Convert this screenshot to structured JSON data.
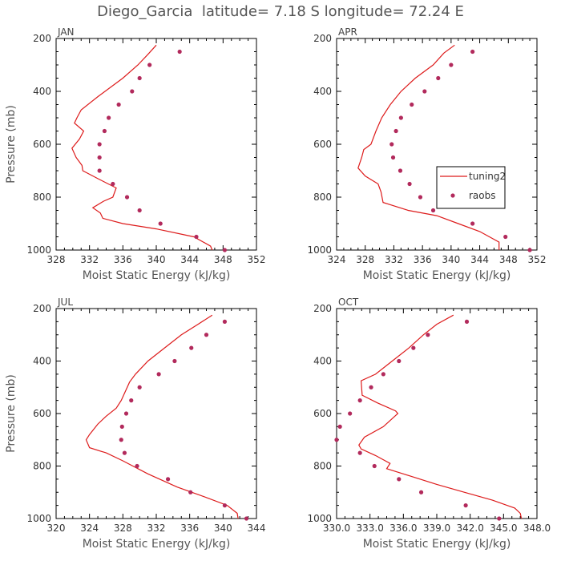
{
  "figure": {
    "title": "Diego_Garcia  latitude= 7.18 S longitude= 72.24 E"
  },
  "colors": {
    "series": "#dd1b1b",
    "points": "#b22a5c",
    "axes": "#000000",
    "text": "#555555"
  },
  "chart_data": [
    {
      "type": "line",
      "panel_title": "JAN",
      "xlabel": "Moist Static Energy (kJ/kg)",
      "ylabel": "Pressure (mb)",
      "xlim": [
        328,
        352
      ],
      "ylim": [
        200,
        1000
      ],
      "y_inverted": true,
      "xticks": [
        328,
        332,
        336,
        340,
        344,
        348,
        352
      ],
      "xtick_labels": [
        "328",
        "332",
        "336",
        "340",
        "344",
        "348",
        "352"
      ],
      "yticks": [
        200,
        400,
        600,
        800,
        1000
      ],
      "ytick_labels": [
        "200",
        "400",
        "600",
        "800",
        "1000"
      ],
      "legend": false,
      "series": [
        {
          "name": "tuning2",
          "kind": "line",
          "points": [
            [
              340.0,
              225
            ],
            [
              339.0,
              260
            ],
            [
              337.8,
              300
            ],
            [
              336.0,
              350
            ],
            [
              333.0,
              420
            ],
            [
              331.0,
              470
            ],
            [
              330.5,
              500
            ],
            [
              330.2,
              520
            ],
            [
              331.3,
              550
            ],
            [
              330.8,
              580
            ],
            [
              329.9,
              615
            ],
            [
              330.4,
              650
            ],
            [
              331.1,
              680
            ],
            [
              331.2,
              700
            ],
            [
              333.0,
              730
            ],
            [
              335.2,
              765
            ],
            [
              334.8,
              800
            ],
            [
              333.7,
              815
            ],
            [
              332.4,
              840
            ],
            [
              333.3,
              860
            ],
            [
              333.6,
              880
            ],
            [
              336.0,
              900
            ],
            [
              340.0,
              920
            ],
            [
              344.5,
              950
            ],
            [
              346.5,
              985
            ],
            [
              346.7,
              1000
            ]
          ]
        },
        {
          "name": "raobs",
          "kind": "points",
          "points": [
            [
              342.8,
              250
            ],
            [
              339.2,
              300
            ],
            [
              338.0,
              350
            ],
            [
              337.1,
              400
            ],
            [
              335.5,
              450
            ],
            [
              334.3,
              500
            ],
            [
              333.8,
              550
            ],
            [
              333.2,
              600
            ],
            [
              333.2,
              650
            ],
            [
              333.2,
              700
            ],
            [
              334.8,
              750
            ],
            [
              336.5,
              800
            ],
            [
              338.0,
              850
            ],
            [
              340.5,
              900
            ],
            [
              344.8,
              950
            ],
            [
              348.2,
              1000
            ]
          ]
        }
      ]
    },
    {
      "type": "line",
      "panel_title": "APR",
      "xlabel": "Moist Static Energy (kJ/kg)",
      "ylabel": "",
      "xlim": [
        324,
        352
      ],
      "ylim": [
        200,
        1000
      ],
      "y_inverted": true,
      "xticks": [
        324,
        328,
        332,
        336,
        340,
        344,
        348,
        352
      ],
      "xtick_labels": [
        "324",
        "328",
        "332",
        "336",
        "340",
        "344",
        "348",
        "352"
      ],
      "yticks": [
        200,
        400,
        600,
        800,
        1000
      ],
      "ytick_labels": [
        "200",
        "400",
        "600",
        "800",
        "1000"
      ],
      "legend": true,
      "legend_entries": [
        "tuning2",
        "raobs"
      ],
      "series": [
        {
          "name": "tuning2",
          "kind": "line",
          "points": [
            [
              340.5,
              225
            ],
            [
              339.0,
              255
            ],
            [
              337.5,
              300
            ],
            [
              335.0,
              350
            ],
            [
              333.0,
              400
            ],
            [
              331.5,
              450
            ],
            [
              330.3,
              500
            ],
            [
              329.5,
              550
            ],
            [
              328.8,
              600
            ],
            [
              327.8,
              620
            ],
            [
              327.5,
              650
            ],
            [
              327.0,
              690
            ],
            [
              328.0,
              720
            ],
            [
              329.8,
              750
            ],
            [
              330.2,
              780
            ],
            [
              330.5,
              820
            ],
            [
              334.0,
              850
            ],
            [
              338.0,
              870
            ],
            [
              341.0,
              900
            ],
            [
              344.0,
              930
            ],
            [
              346.7,
              970
            ],
            [
              346.7,
              1000
            ]
          ]
        },
        {
          "name": "raobs",
          "kind": "points",
          "points": [
            [
              343.0,
              250
            ],
            [
              340.0,
              300
            ],
            [
              338.2,
              350
            ],
            [
              336.3,
              400
            ],
            [
              334.5,
              450
            ],
            [
              333.0,
              500
            ],
            [
              332.3,
              550
            ],
            [
              331.7,
              600
            ],
            [
              331.9,
              650
            ],
            [
              332.9,
              700
            ],
            [
              334.2,
              750
            ],
            [
              335.7,
              800
            ],
            [
              337.5,
              850
            ],
            [
              343.0,
              900
            ],
            [
              347.6,
              950
            ],
            [
              351.0,
              1000
            ]
          ]
        }
      ]
    },
    {
      "type": "line",
      "panel_title": "JUL",
      "xlabel": "Moist Static Energy (kJ/kg)",
      "ylabel": "Pressure (mb)",
      "xlim": [
        320,
        344
      ],
      "ylim": [
        200,
        1000
      ],
      "y_inverted": true,
      "xticks": [
        320,
        324,
        328,
        332,
        336,
        340,
        344
      ],
      "xtick_labels": [
        "320",
        "324",
        "328",
        "332",
        "336",
        "340",
        "344"
      ],
      "yticks": [
        200,
        400,
        600,
        800,
        1000
      ],
      "ytick_labels": [
        "200",
        "400",
        "600",
        "800",
        "1000"
      ],
      "legend": false,
      "series": [
        {
          "name": "tuning2",
          "kind": "line",
          "points": [
            [
              338.7,
              225
            ],
            [
              337.0,
              260
            ],
            [
              335.0,
              300
            ],
            [
              333.0,
              350
            ],
            [
              331.0,
              400
            ],
            [
              329.5,
              450
            ],
            [
              328.8,
              480
            ],
            [
              327.8,
              550
            ],
            [
              327.2,
              580
            ],
            [
              326.0,
              610
            ],
            [
              325.0,
              640
            ],
            [
              324.0,
              680
            ],
            [
              323.6,
              700
            ],
            [
              324.0,
              730
            ],
            [
              326.0,
              750
            ],
            [
              328.0,
              780
            ],
            [
              331.0,
              830
            ],
            [
              334.5,
              880
            ],
            [
              338.0,
              920
            ],
            [
              340.5,
              950
            ],
            [
              341.7,
              980
            ],
            [
              341.8,
              1000
            ]
          ]
        },
        {
          "name": "raobs",
          "kind": "points",
          "points": [
            [
              340.2,
              250
            ],
            [
              338.0,
              300
            ],
            [
              336.2,
              350
            ],
            [
              334.2,
              400
            ],
            [
              332.3,
              450
            ],
            [
              330.0,
              500
            ],
            [
              329.0,
              550
            ],
            [
              328.4,
              600
            ],
            [
              327.9,
              650
            ],
            [
              327.8,
              700
            ],
            [
              328.2,
              750
            ],
            [
              329.7,
              800
            ],
            [
              333.4,
              850
            ],
            [
              336.1,
              900
            ],
            [
              340.2,
              950
            ],
            [
              342.8,
              1000
            ]
          ]
        }
      ]
    },
    {
      "type": "line",
      "panel_title": "OCT",
      "xlabel": "Moist Static Energy (kJ/kg)",
      "ylabel": "",
      "xlim": [
        330.0,
        348.0
      ],
      "ylim": [
        200,
        1000
      ],
      "y_inverted": true,
      "xticks": [
        330.0,
        333.0,
        336.0,
        339.0,
        342.0,
        345.0,
        348.0
      ],
      "xtick_labels": [
        "330.0",
        "333.0",
        "336.0",
        "339.0",
        "342.0",
        "345.0",
        "348.0"
      ],
      "yticks": [
        200,
        400,
        600,
        800,
        1000
      ],
      "ytick_labels": [
        "200",
        "400",
        "600",
        "800",
        "1000"
      ],
      "legend": false,
      "series": [
        {
          "name": "tuning2",
          "kind": "line",
          "points": [
            [
              340.5,
              225
            ],
            [
              339.0,
              260
            ],
            [
              337.8,
              300
            ],
            [
              336.5,
              350
            ],
            [
              335.0,
              400
            ],
            [
              333.5,
              450
            ],
            [
              332.2,
              475
            ],
            [
              332.3,
              530
            ],
            [
              333.7,
              560
            ],
            [
              335.3,
              590
            ],
            [
              335.5,
              600
            ],
            [
              334.2,
              650
            ],
            [
              332.5,
              690
            ],
            [
              332.0,
              720
            ],
            [
              332.2,
              735
            ],
            [
              333.5,
              760
            ],
            [
              334.8,
              790
            ],
            [
              334.5,
              810
            ],
            [
              336.0,
              830
            ],
            [
              339.0,
              870
            ],
            [
              341.5,
              900
            ],
            [
              344.0,
              930
            ],
            [
              346.0,
              960
            ],
            [
              346.5,
              980
            ],
            [
              346.6,
              1000
            ]
          ]
        },
        {
          "name": "raobs",
          "kind": "points",
          "points": [
            [
              341.7,
              250
            ],
            [
              338.2,
              300
            ],
            [
              336.9,
              350
            ],
            [
              335.6,
              400
            ],
            [
              334.2,
              450
            ],
            [
              333.1,
              500
            ],
            [
              332.1,
              550
            ],
            [
              331.2,
              600
            ],
            [
              330.3,
              650
            ],
            [
              330.0,
              700
            ],
            [
              332.1,
              750
            ],
            [
              333.4,
              800
            ],
            [
              335.6,
              850
            ],
            [
              337.6,
              900
            ],
            [
              341.6,
              950
            ],
            [
              344.6,
              1000
            ]
          ]
        }
      ]
    }
  ]
}
